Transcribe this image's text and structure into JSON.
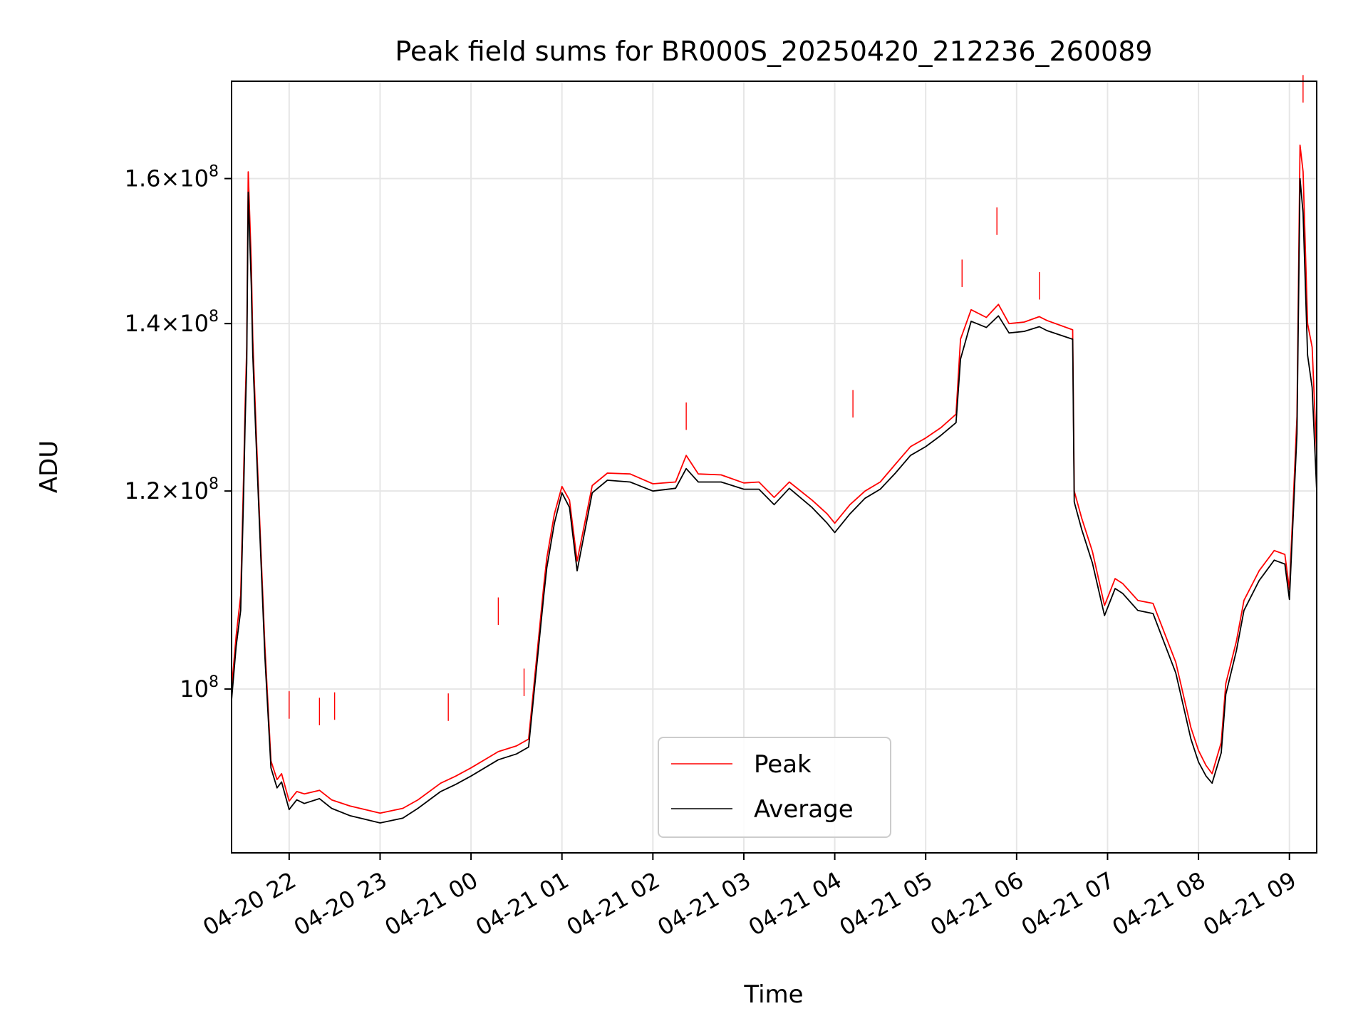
{
  "chart_data": {
    "type": "line",
    "title": "Peak field sums for BR000S_20250420_212236_260089",
    "xlabel": "Time",
    "ylabel": "ADU",
    "y_scale": "log",
    "ylim": [
      86000000,
      175000000
    ],
    "xlim": [
      "2025-04-20 21:22",
      "2025-04-21 09:18"
    ],
    "grid": true,
    "legend_position": "lower center",
    "x_ticks": [
      {
        "value": "2025-04-20 22:00",
        "label": "04-20 22"
      },
      {
        "value": "2025-04-20 23:00",
        "label": "04-20 23"
      },
      {
        "value": "2025-04-21 00:00",
        "label": "04-21 00"
      },
      {
        "value": "2025-04-21 01:00",
        "label": "04-21 01"
      },
      {
        "value": "2025-04-21 02:00",
        "label": "04-21 02"
      },
      {
        "value": "2025-04-21 03:00",
        "label": "04-21 03"
      },
      {
        "value": "2025-04-21 04:00",
        "label": "04-21 04"
      },
      {
        "value": "2025-04-21 05:00",
        "label": "04-21 05"
      },
      {
        "value": "2025-04-21 06:00",
        "label": "04-21 06"
      },
      {
        "value": "2025-04-21 07:00",
        "label": "04-21 07"
      },
      {
        "value": "2025-04-21 08:00",
        "label": "04-21 08"
      },
      {
        "value": "2025-04-21 09:00",
        "label": "04-21 09"
      }
    ],
    "y_ticks": [
      {
        "value": 100000000,
        "mantissa": "",
        "exponent": "8"
      },
      {
        "value": 120000000,
        "mantissa": "1.2",
        "exponent": "8"
      },
      {
        "value": 140000000,
        "mantissa": "1.4",
        "exponent": "8"
      },
      {
        "value": 160000000,
        "mantissa": "1.6",
        "exponent": "8"
      }
    ],
    "series": [
      {
        "name": "Peak",
        "color": "#ff0000",
        "x": [
          "2025-04-20 21:22",
          "2025-04-20 21:25",
          "2025-04-20 21:28",
          "2025-04-20 21:30",
          "2025-04-20 21:31",
          "2025-04-20 21:32",
          "2025-04-20 21:33",
          "2025-04-20 21:35",
          "2025-04-20 21:36",
          "2025-04-20 21:38",
          "2025-04-20 21:40",
          "2025-04-20 21:44",
          "2025-04-20 21:48",
          "2025-04-20 21:52",
          "2025-04-20 21:55",
          "2025-04-20 22:00",
          "2025-04-20 22:05",
          "2025-04-20 22:10",
          "2025-04-20 22:20",
          "2025-04-20 22:28",
          "2025-04-20 22:40",
          "2025-04-20 23:00",
          "2025-04-20 23:15",
          "2025-04-20 23:25",
          "2025-04-20 23:40",
          "2025-04-20 23:50",
          "2025-04-21 00:00",
          "2025-04-21 00:18",
          "2025-04-21 00:30",
          "2025-04-21 00:38",
          "2025-04-21 00:48",
          "2025-04-21 00:50",
          "2025-04-21 00:55",
          "2025-04-21 01:00",
          "2025-04-21 01:05",
          "2025-04-21 01:10",
          "2025-04-21 01:20",
          "2025-04-21 01:30",
          "2025-04-21 01:45",
          "2025-04-21 02:00",
          "2025-04-21 02:15",
          "2025-04-21 02:22",
          "2025-04-21 02:30",
          "2025-04-21 02:45",
          "2025-04-21 03:00",
          "2025-04-21 03:10",
          "2025-04-21 03:20",
          "2025-04-21 03:30",
          "2025-04-21 03:45",
          "2025-04-21 03:55",
          "2025-04-21 04:00",
          "2025-04-21 04:10",
          "2025-04-21 04:20",
          "2025-04-21 04:30",
          "2025-04-21 04:40",
          "2025-04-21 04:50",
          "2025-04-21 05:00",
          "2025-04-21 05:10",
          "2025-04-21 05:20",
          "2025-04-21 05:23",
          "2025-04-21 05:30",
          "2025-04-21 05:40",
          "2025-04-21 05:48",
          "2025-04-21 05:55",
          "2025-04-21 06:05",
          "2025-04-21 06:15",
          "2025-04-21 06:20",
          "2025-04-21 06:37",
          "2025-04-21 06:38",
          "2025-04-21 06:43",
          "2025-04-21 06:50",
          "2025-04-21 06:58",
          "2025-04-21 07:05",
          "2025-04-21 07:10",
          "2025-04-21 07:20",
          "2025-04-21 07:30",
          "2025-04-21 07:45",
          "2025-04-21 07:55",
          "2025-04-21 08:00",
          "2025-04-21 08:05",
          "2025-04-21 08:09",
          "2025-04-21 08:15",
          "2025-04-21 08:18",
          "2025-04-21 08:25",
          "2025-04-21 08:30",
          "2025-04-21 08:40",
          "2025-04-21 08:50",
          "2025-04-21 08:57",
          "2025-04-21 09:00",
          "2025-04-21 09:05",
          "2025-04-21 09:07",
          "2025-04-21 09:09",
          "2025-04-21 09:12",
          "2025-04-21 09:15",
          "2025-04-21 09:18"
        ],
        "y": [
          100000000,
          105000000,
          109000000,
          122000000,
          130000000,
          137000000,
          161000000,
          148000000,
          138000000,
          128000000,
          119000000,
          104000000,
          93600000,
          92000000,
          92500000,
          90200000,
          91000000,
          90800000,
          91100000,
          90300000,
          89800000,
          89200000,
          89600000,
          90300000,
          91700000,
          92300000,
          93000000,
          94400000,
          94900000,
          95500000,
          110000000,
          112800000,
          117500000,
          120500000,
          119000000,
          112500000,
          120600000,
          122000000,
          121900000,
          120800000,
          121000000,
          124000000,
          121900000,
          121800000,
          120900000,
          121000000,
          119300000,
          121000000,
          119000000,
          117500000,
          116500000,
          118500000,
          120000000,
          121000000,
          123000000,
          125000000,
          126000000,
          127200000,
          128800000,
          138000000,
          141800000,
          140800000,
          142500000,
          140000000,
          140200000,
          140900000,
          140400000,
          139200000,
          120000000,
          117000000,
          113500000,
          108000000,
          110700000,
          110200000,
          108500000,
          108200000,
          102500000,
          96500000,
          94500000,
          93200000,
          92500000,
          95200000,
          100500000,
          104500000,
          108500000,
          111500000,
          113600000,
          113200000,
          109600000,
          128500000,
          165000000,
          161000000,
          140000000,
          137000000,
          124000000
        ],
        "spikes": [
          {
            "x": "2025-04-20 22:00",
            "y": 99800000
          },
          {
            "x": "2025-04-20 22:20",
            "y": 99200000
          },
          {
            "x": "2025-04-20 22:30",
            "y": 99700000
          },
          {
            "x": "2025-04-20 23:45",
            "y": 99600000
          },
          {
            "x": "2025-04-21 00:18",
            "y": 108800000
          },
          {
            "x": "2025-04-21 00:35",
            "y": 101900000
          },
          {
            "x": "2025-04-21 02:22",
            "y": 130200000
          },
          {
            "x": "2025-04-21 04:12",
            "y": 131700000
          },
          {
            "x": "2025-04-21 05:24",
            "y": 148500000
          },
          {
            "x": "2025-04-21 05:47",
            "y": 155800000
          },
          {
            "x": "2025-04-21 06:15",
            "y": 146800000
          },
          {
            "x": "2025-04-21 09:09",
            "y": 176000000
          }
        ]
      },
      {
        "name": "Average",
        "color": "#000000",
        "x": [
          "2025-04-20 21:22",
          "2025-04-20 21:25",
          "2025-04-20 21:28",
          "2025-04-20 21:30",
          "2025-04-20 21:31",
          "2025-04-20 21:32",
          "2025-04-20 21:33",
          "2025-04-20 21:35",
          "2025-04-20 21:36",
          "2025-04-20 21:38",
          "2025-04-20 21:40",
          "2025-04-20 21:44",
          "2025-04-20 21:48",
          "2025-04-20 21:52",
          "2025-04-20 21:55",
          "2025-04-20 22:00",
          "2025-04-20 22:05",
          "2025-04-20 22:10",
          "2025-04-20 22:20",
          "2025-04-20 22:28",
          "2025-04-20 22:40",
          "2025-04-20 23:00",
          "2025-04-20 23:15",
          "2025-04-20 23:25",
          "2025-04-20 23:40",
          "2025-04-20 23:50",
          "2025-04-21 00:00",
          "2025-04-21 00:18",
          "2025-04-21 00:30",
          "2025-04-21 00:38",
          "2025-04-21 00:48",
          "2025-04-21 00:50",
          "2025-04-21 00:55",
          "2025-04-21 01:00",
          "2025-04-21 01:05",
          "2025-04-21 01:10",
          "2025-04-21 01:20",
          "2025-04-21 01:30",
          "2025-04-21 01:45",
          "2025-04-21 02:00",
          "2025-04-21 02:15",
          "2025-04-21 02:22",
          "2025-04-21 02:30",
          "2025-04-21 02:45",
          "2025-04-21 03:00",
          "2025-04-21 03:10",
          "2025-04-21 03:20",
          "2025-04-21 03:30",
          "2025-04-21 03:45",
          "2025-04-21 03:55",
          "2025-04-21 04:00",
          "2025-04-21 04:10",
          "2025-04-21 04:20",
          "2025-04-21 04:30",
          "2025-04-21 04:40",
          "2025-04-21 04:50",
          "2025-04-21 05:00",
          "2025-04-21 05:10",
          "2025-04-21 05:20",
          "2025-04-21 05:23",
          "2025-04-21 05:30",
          "2025-04-21 05:40",
          "2025-04-21 05:48",
          "2025-04-21 05:55",
          "2025-04-21 06:05",
          "2025-04-21 06:15",
          "2025-04-21 06:20",
          "2025-04-21 06:37",
          "2025-04-21 06:38",
          "2025-04-21 06:43",
          "2025-04-21 06:50",
          "2025-04-21 06:58",
          "2025-04-21 07:05",
          "2025-04-21 07:10",
          "2025-04-21 07:20",
          "2025-04-21 07:30",
          "2025-04-21 07:45",
          "2025-04-21 07:55",
          "2025-04-21 08:00",
          "2025-04-21 08:05",
          "2025-04-21 08:09",
          "2025-04-21 08:15",
          "2025-04-21 08:18",
          "2025-04-21 08:25",
          "2025-04-21 08:30",
          "2025-04-21 08:40",
          "2025-04-21 08:50",
          "2025-04-21 08:57",
          "2025-04-21 09:00",
          "2025-04-21 09:05",
          "2025-04-21 09:07",
          "2025-04-21 09:09",
          "2025-04-21 09:12",
          "2025-04-21 09:15",
          "2025-04-21 09:18"
        ],
        "y": [
          99000000,
          104000000,
          107500000,
          120000000,
          128000000,
          135000000,
          158000000,
          145000000,
          136000000,
          126500000,
          118000000,
          103000000,
          93000000,
          91300000,
          91800000,
          89500000,
          90300000,
          90000000,
          90400000,
          89600000,
          89000000,
          88400000,
          88800000,
          89600000,
          91000000,
          91600000,
          92300000,
          93700000,
          94200000,
          94800000,
          109000000,
          111800000,
          116500000,
          119800000,
          118200000,
          111500000,
          119800000,
          121200000,
          121000000,
          120000000,
          120300000,
          122500000,
          121000000,
          121000000,
          120200000,
          120200000,
          118500000,
          120300000,
          118200000,
          116500000,
          115500000,
          117500000,
          119200000,
          120200000,
          122000000,
          124000000,
          125000000,
          126300000,
          127800000,
          135500000,
          140300000,
          139500000,
          141000000,
          138800000,
          139000000,
          139600000,
          139100000,
          138000000,
          118800000,
          115800000,
          112300000,
          107000000,
          109700000,
          109200000,
          107500000,
          107200000,
          101500000,
          95500000,
          93500000,
          92300000,
          91700000,
          94300000,
          99500000,
          103600000,
          107500000,
          110500000,
          112600000,
          112200000,
          108600000,
          126500000,
          160000000,
          155000000,
          136000000,
          132000000,
          120000000
        ]
      }
    ]
  }
}
